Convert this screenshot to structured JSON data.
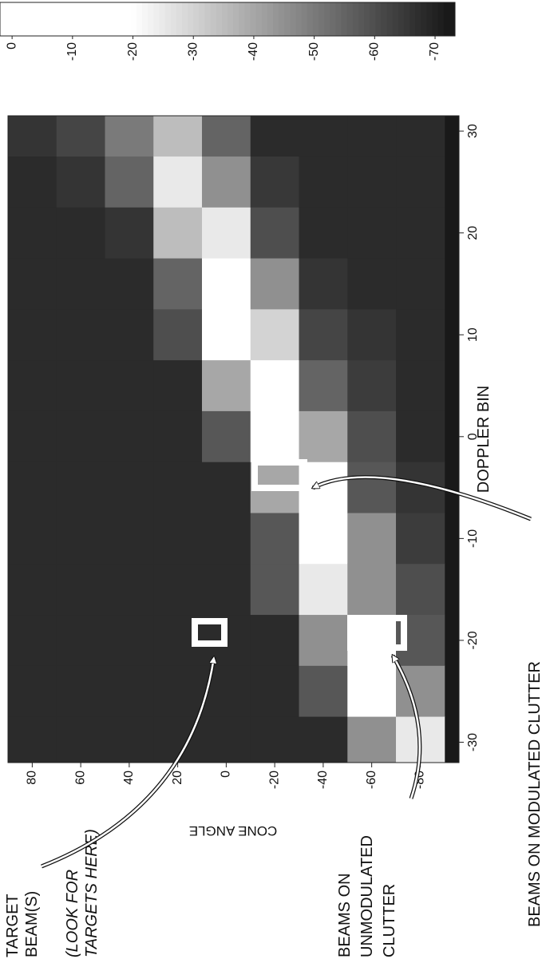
{
  "chart_data": {
    "type": "heatmap",
    "xlabel": "DOPPLER BIN",
    "ylabel": "CONE ANGLE",
    "x": [
      -30,
      -25,
      -20,
      -15,
      -10,
      -5,
      0,
      5,
      10,
      15,
      20,
      25,
      30
    ],
    "y": [
      80,
      60,
      40,
      20,
      0,
      -20,
      -40,
      -60,
      -80
    ],
    "z": [
      [
        -68,
        -68,
        -68,
        -68,
        -68,
        -68,
        -68,
        -68,
        -68,
        -68,
        -68,
        -68,
        -66
      ],
      [
        -68,
        -68,
        -68,
        -68,
        -68,
        -68,
        -68,
        -68,
        -68,
        -68,
        -68,
        -66,
        -62
      ],
      [
        -68,
        -68,
        -68,
        -68,
        -68,
        -68,
        -68,
        -68,
        -68,
        -68,
        -66,
        -55,
        -50
      ],
      [
        -68,
        -68,
        -68,
        -68,
        -68,
        -68,
        -68,
        -68,
        -60,
        -55,
        -35,
        -25,
        -35
      ],
      [
        -68,
        -68,
        -68,
        -68,
        -68,
        -68,
        -58,
        -40,
        -15,
        -10,
        -25,
        -45,
        -55
      ],
      [
        -68,
        -68,
        -68,
        -58,
        -58,
        -40,
        -5,
        -5,
        -30,
        -45,
        -60,
        -65,
        -68
      ],
      [
        -68,
        -58,
        -45,
        -25,
        -10,
        -20,
        -40,
        -55,
        -62,
        -66,
        -68,
        -68,
        -68
      ],
      [
        -45,
        -20,
        -15,
        -45,
        -45,
        -58,
        -60,
        -64,
        -66,
        -68,
        -68,
        -68,
        -68
      ],
      [
        -25,
        -45,
        -58,
        -60,
        -64,
        -66,
        -68,
        -68,
        -68,
        -68,
        -68,
        -68,
        -68
      ]
    ],
    "xlim": [
      -32,
      31.5
    ],
    "xticks": [
      -30,
      -20,
      -10,
      0,
      10,
      20,
      30
    ],
    "ylim": [
      -96,
      90
    ],
    "yticks": [
      80,
      60,
      40,
      20,
      0,
      -20,
      -40,
      -60,
      -80
    ],
    "colorbar": {
      "lim": [
        -73.3,
        2
      ],
      "ticks": [
        0,
        -10,
        -20,
        -30,
        -40,
        -50,
        -60,
        -70
      ]
    },
    "annotations": [
      {
        "lines": [
          "TARGET",
          "BEAM(S)"
        ]
      },
      {
        "lines": [
          "(LOOK FOR",
          "TARGETS HERE)"
        ]
      },
      {
        "lines": [
          "BEAMS ON",
          "UNMODULATED",
          "CLUTTER"
        ]
      },
      {
        "lines": [
          "BEAMS ON MODULATED CLUTTER"
        ]
      }
    ]
  }
}
